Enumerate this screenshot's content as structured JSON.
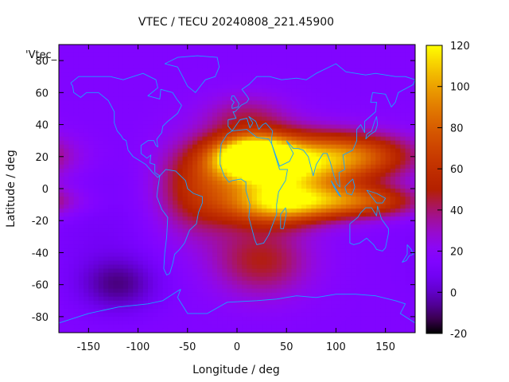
{
  "chart_data": {
    "type": "heatmap",
    "title": "VTEC / TECU 20240808_221.45900",
    "key_label": "'Vtec_",
    "xlabel": "Longitude / deg",
    "ylabel": "Latitude / deg",
    "xlim": [
      -180,
      180
    ],
    "ylim": [
      -90,
      90
    ],
    "x_ticks": [
      -150,
      -100,
      -50,
      0,
      50,
      100,
      150
    ],
    "x_tick_labels": [
      "-150",
      "-100",
      "-50",
      "0",
      "50",
      "100",
      "150"
    ],
    "y_ticks": [
      80,
      60,
      40,
      20,
      0,
      -20,
      -40,
      -60,
      -80
    ],
    "y_tick_labels": [
      "80",
      "60",
      "40",
      "20",
      "0",
      "-20",
      "-40",
      "-60",
      "-80"
    ],
    "colorbar": {
      "range": [
        -20,
        120
      ],
      "ticks": [
        120,
        100,
        80,
        60,
        40,
        20,
        0,
        -20
      ],
      "tick_labels": [
        "120",
        "100",
        "80",
        "60",
        "40",
        "20",
        "0",
        "-20"
      ]
    },
    "grid": false,
    "background_vtec": 16,
    "features": [
      {
        "name": "equatorial-anomaly-africa-north",
        "lon": 15,
        "lat": 20,
        "peak": 108,
        "sigma_lon": 28,
        "sigma_lat": 9
      },
      {
        "name": "africa-arabia-band",
        "lon": 45,
        "lat": 12,
        "peak": 80,
        "sigma_lon": 45,
        "sigma_lat": 14
      },
      {
        "name": "equatorial-anomaly-south",
        "lon": 40,
        "lat": -10,
        "peak": 70,
        "sigma_lon": 38,
        "sigma_lat": 9
      },
      {
        "name": "asia-northern-crest",
        "lon": 115,
        "lat": 20,
        "peak": 62,
        "sigma_lon": 45,
        "sigma_lat": 10
      },
      {
        "name": "asia-southern-crest",
        "lon": 120,
        "lat": -8,
        "peak": 58,
        "sigma_lon": 45,
        "sigma_lat": 7
      },
      {
        "name": "atlantic-westward-extension",
        "lon": -40,
        "lat": 0,
        "peak": 36,
        "sigma_lon": 30,
        "sigma_lat": 20
      },
      {
        "name": "southern-ocean-plume",
        "lon": 25,
        "lat": -45,
        "peak": 32,
        "sigma_lon": 35,
        "sigma_lat": 16
      },
      {
        "name": "europe-mid-latitude",
        "lon": 10,
        "lat": 45,
        "peak": 22,
        "sigma_lon": 30,
        "sigma_lat": 10
      },
      {
        "name": "south-pacific-depletion",
        "lon": -120,
        "lat": -60,
        "peak": -22,
        "sigma_lon": 28,
        "sigma_lat": 12
      },
      {
        "name": "pacific-depletion",
        "lon": -140,
        "lat": -20,
        "peak": -6,
        "sigma_lon": 40,
        "sigma_lat": 30
      }
    ],
    "coastlines": [
      {
        "name": "north-america",
        "points": [
          [
            -168,
            66
          ],
          [
            -160,
            70
          ],
          [
            -140,
            70
          ],
          [
            -128,
            70
          ],
          [
            -115,
            68
          ],
          [
            -95,
            72
          ],
          [
            -82,
            68
          ],
          [
            -80,
            63
          ],
          [
            -90,
            58
          ],
          [
            -78,
            56
          ],
          [
            -77,
            62
          ],
          [
            -65,
            60
          ],
          [
            -61,
            56
          ],
          [
            -56,
            52
          ],
          [
            -60,
            47
          ],
          [
            -66,
            44
          ],
          [
            -70,
            42
          ],
          [
            -75,
            39
          ],
          [
            -76,
            35
          ],
          [
            -81,
            31
          ],
          [
            -80,
            26
          ],
          [
            -82,
            27
          ],
          [
            -84,
            30
          ],
          [
            -90,
            30
          ],
          [
            -97,
            27
          ],
          [
            -97,
            22
          ],
          [
            -91,
            19
          ],
          [
            -87,
            21
          ],
          [
            -88,
            16
          ],
          [
            -83,
            15
          ],
          [
            -83,
            10
          ],
          [
            -78,
            8
          ],
          [
            -80,
            7
          ],
          [
            -85,
            10
          ],
          [
            -92,
            15
          ],
          [
            -105,
            20
          ],
          [
            -110,
            24
          ],
          [
            -112,
            30
          ],
          [
            -115,
            31
          ],
          [
            -117,
            33
          ],
          [
            -121,
            36
          ],
          [
            -124,
            41
          ],
          [
            -124,
            48
          ],
          [
            -130,
            55
          ],
          [
            -140,
            60
          ],
          [
            -152,
            60
          ],
          [
            -158,
            57
          ],
          [
            -165,
            60
          ],
          [
            -166,
            64
          ],
          [
            -168,
            66
          ]
        ]
      },
      {
        "name": "greenland",
        "points": [
          [
            -73,
            78
          ],
          [
            -60,
            82
          ],
          [
            -40,
            83
          ],
          [
            -20,
            82
          ],
          [
            -18,
            76
          ],
          [
            -22,
            70
          ],
          [
            -32,
            68
          ],
          [
            -42,
            60
          ],
          [
            -50,
            64
          ],
          [
            -55,
            70
          ],
          [
            -60,
            76
          ],
          [
            -73,
            78
          ]
        ]
      },
      {
        "name": "south-america",
        "points": [
          [
            -78,
            8
          ],
          [
            -72,
            12
          ],
          [
            -62,
            11
          ],
          [
            -52,
            5
          ],
          [
            -50,
            0
          ],
          [
            -44,
            -3
          ],
          [
            -35,
            -5
          ],
          [
            -35,
            -9
          ],
          [
            -39,
            -15
          ],
          [
            -41,
            -22
          ],
          [
            -48,
            -26
          ],
          [
            -53,
            -34
          ],
          [
            -58,
            -38
          ],
          [
            -63,
            -41
          ],
          [
            -65,
            -47
          ],
          [
            -68,
            -53
          ],
          [
            -71,
            -54
          ],
          [
            -74,
            -50
          ],
          [
            -73,
            -40
          ],
          [
            -71,
            -30
          ],
          [
            -70,
            -18
          ],
          [
            -76,
            -13
          ],
          [
            -81,
            -5
          ],
          [
            -80,
            0
          ],
          [
            -78,
            8
          ]
        ]
      },
      {
        "name": "africa",
        "points": [
          [
            -17,
            21
          ],
          [
            -16,
            28
          ],
          [
            -10,
            34
          ],
          [
            -5,
            36
          ],
          [
            10,
            37
          ],
          [
            20,
            32
          ],
          [
            32,
            31
          ],
          [
            35,
            28
          ],
          [
            43,
            12
          ],
          [
            51,
            12
          ],
          [
            49,
            5
          ],
          [
            42,
            -2
          ],
          [
            40,
            -10
          ],
          [
            40,
            -16
          ],
          [
            35,
            -24
          ],
          [
            32,
            -29
          ],
          [
            27,
            -34
          ],
          [
            20,
            -35
          ],
          [
            18,
            -32
          ],
          [
            12,
            -18
          ],
          [
            13,
            -10
          ],
          [
            9,
            -1
          ],
          [
            9,
            4
          ],
          [
            4,
            6
          ],
          [
            -5,
            5
          ],
          [
            -8,
            4
          ],
          [
            -13,
            8
          ],
          [
            -17,
            15
          ],
          [
            -17,
            21
          ]
        ]
      },
      {
        "name": "europe-asia",
        "points": [
          [
            -9,
            43
          ],
          [
            -9,
            39
          ],
          [
            -5,
            36
          ],
          [
            3,
            43
          ],
          [
            10,
            44
          ],
          [
            13,
            38
          ],
          [
            16,
            41
          ],
          [
            12,
            45
          ],
          [
            19,
            42
          ],
          [
            22,
            37
          ],
          [
            26,
            40
          ],
          [
            29,
            41
          ],
          [
            36,
            36
          ],
          [
            35,
            32
          ],
          [
            35,
            28
          ],
          [
            43,
            14
          ],
          [
            53,
            17
          ],
          [
            57,
            22
          ],
          [
            50,
            30
          ],
          [
            57,
            25
          ],
          [
            62,
            25
          ],
          [
            67,
            24
          ],
          [
            72,
            20
          ],
          [
            77,
            8
          ],
          [
            80,
            15
          ],
          [
            87,
            22
          ],
          [
            91,
            22
          ],
          [
            94,
            17
          ],
          [
            98,
            8
          ],
          [
            101,
            3
          ],
          [
            104,
            1
          ],
          [
            103,
            10
          ],
          [
            109,
            12
          ],
          [
            107,
            21
          ],
          [
            117,
            24
          ],
          [
            121,
            30
          ],
          [
            121,
            37
          ],
          [
            125,
            40
          ],
          [
            129,
            35
          ],
          [
            129,
            42
          ],
          [
            140,
            48
          ],
          [
            141,
            54
          ],
          [
            135,
            54
          ],
          [
            137,
            60
          ],
          [
            150,
            59
          ],
          [
            156,
            51
          ],
          [
            160,
            54
          ],
          [
            163,
            60
          ],
          [
            178,
            65
          ],
          [
            180,
            68
          ],
          [
            170,
            70
          ],
          [
            160,
            70
          ],
          [
            140,
            72
          ],
          [
            130,
            71
          ],
          [
            110,
            73
          ],
          [
            100,
            78
          ],
          [
            80,
            72
          ],
          [
            70,
            68
          ],
          [
            60,
            69
          ],
          [
            45,
            68
          ],
          [
            33,
            70
          ],
          [
            20,
            70
          ],
          [
            12,
            65
          ],
          [
            5,
            62
          ],
          [
            10,
            58
          ],
          [
            12,
            56
          ],
          [
            10,
            54
          ],
          [
            4,
            52
          ],
          [
            -2,
            48
          ],
          [
            -4,
            48
          ],
          [
            -1,
            44
          ],
          [
            -9,
            43
          ]
        ]
      },
      {
        "name": "great-britain",
        "points": [
          [
            -5,
            50
          ],
          [
            1,
            51
          ],
          [
            2,
            53
          ],
          [
            -1,
            56
          ],
          [
            -3,
            58
          ],
          [
            -5,
            58
          ],
          [
            -6,
            56
          ],
          [
            -3,
            54
          ],
          [
            -5,
            52
          ],
          [
            -5,
            50
          ]
        ]
      },
      {
        "name": "madagascar",
        "points": [
          [
            44,
            -25
          ],
          [
            47,
            -25
          ],
          [
            50,
            -15
          ],
          [
            49,
            -12
          ],
          [
            44,
            -16
          ],
          [
            44,
            -25
          ]
        ]
      },
      {
        "name": "japan",
        "points": [
          [
            130,
            31
          ],
          [
            135,
            34
          ],
          [
            140,
            36
          ],
          [
            142,
            40
          ],
          [
            141,
            45
          ],
          [
            139,
            42
          ],
          [
            136,
            36
          ],
          [
            131,
            34
          ],
          [
            130,
            31
          ]
        ]
      },
      {
        "name": "borneo",
        "points": [
          [
            109,
            1
          ],
          [
            111,
            -3
          ],
          [
            116,
            -4
          ],
          [
            119,
            1
          ],
          [
            117,
            6
          ],
          [
            112,
            3
          ],
          [
            109,
            1
          ]
        ]
      },
      {
        "name": "sumatra",
        "points": [
          [
            95,
            5
          ],
          [
            100,
            0
          ],
          [
            105,
            -5
          ],
          [
            103,
            -4
          ],
          [
            98,
            1
          ],
          [
            95,
            5
          ]
        ]
      },
      {
        "name": "new-guinea",
        "points": [
          [
            131,
            -1
          ],
          [
            141,
            -3
          ],
          [
            150,
            -6
          ],
          [
            147,
            -9
          ],
          [
            141,
            -9
          ],
          [
            136,
            -5
          ],
          [
            131,
            -1
          ]
        ]
      },
      {
        "name": "australia",
        "points": [
          [
            114,
            -22
          ],
          [
            114,
            -34
          ],
          [
            118,
            -35
          ],
          [
            124,
            -34
          ],
          [
            131,
            -31
          ],
          [
            138,
            -35
          ],
          [
            141,
            -38
          ],
          [
            147,
            -39
          ],
          [
            150,
            -37
          ],
          [
            153,
            -28
          ],
          [
            153,
            -25
          ],
          [
            146,
            -19
          ],
          [
            142,
            -11
          ],
          [
            141,
            -17
          ],
          [
            136,
            -12
          ],
          [
            130,
            -12
          ],
          [
            125,
            -15
          ],
          [
            122,
            -18
          ],
          [
            114,
            -22
          ]
        ]
      },
      {
        "name": "new-zealand",
        "points": [
          [
            172,
            -35
          ],
          [
            176,
            -38
          ],
          [
            178,
            -41
          ],
          [
            174,
            -42
          ],
          [
            171,
            -45
          ],
          [
            167,
            -46
          ],
          [
            172,
            -41
          ],
          [
            172,
            -35
          ]
        ]
      },
      {
        "name": "antarctica",
        "points": [
          [
            -180,
            -84
          ],
          [
            -150,
            -78
          ],
          [
            -120,
            -74
          ],
          [
            -90,
            -72
          ],
          [
            -75,
            -70
          ],
          [
            -60,
            -64
          ],
          [
            -57,
            -63
          ],
          [
            -60,
            -68
          ],
          [
            -50,
            -78
          ],
          [
            -30,
            -78
          ],
          [
            -10,
            -71
          ],
          [
            20,
            -70
          ],
          [
            40,
            -69
          ],
          [
            60,
            -67
          ],
          [
            80,
            -68
          ],
          [
            100,
            -66
          ],
          [
            120,
            -66
          ],
          [
            140,
            -67
          ],
          [
            160,
            -70
          ],
          [
            170,
            -72
          ],
          [
            165,
            -78
          ],
          [
            180,
            -84
          ]
        ]
      }
    ]
  }
}
